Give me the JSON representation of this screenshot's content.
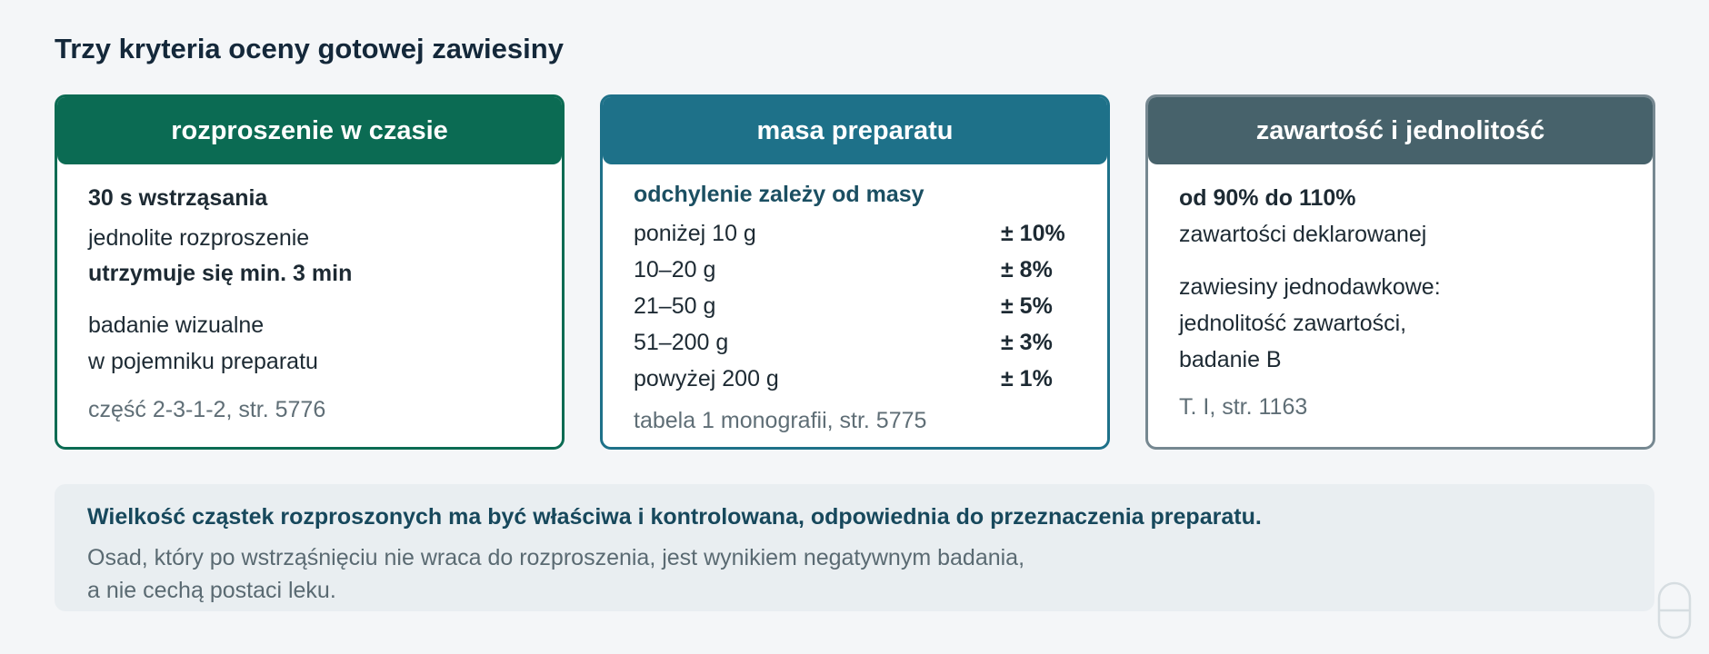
{
  "title": "Trzy kryteria oceny gotowej zawiesiny",
  "cards": [
    {
      "header": "rozproszenie w czasie",
      "lines": [
        "30 s wstrząsania",
        "jednolite rozproszenie",
        "utrzymuje się min. 3 min",
        "badanie wizualne",
        "w pojemniku preparatu",
        "część 2-3-1-2, str. 5776"
      ]
    },
    {
      "header": "masa preparatu",
      "subtitle": "odchylenie zależy od masy",
      "table_rows": [
        {
          "range": "poniżej 10 g",
          "tolerance": "± 10%"
        },
        {
          "range": "10–20 g",
          "tolerance": "± 8%"
        },
        {
          "range": "21–50 g",
          "tolerance": "± 5%"
        },
        {
          "range": "51–200 g",
          "tolerance": "± 3%"
        },
        {
          "range": "powyżej 200 g",
          "tolerance": "± 1%"
        }
      ],
      "source": "tabela 1 monografii, str. 5775"
    },
    {
      "header": "zawartość i jednolitość",
      "lines": [
        "od 90% do 110%",
        "zawartości deklarowanej",
        "zawiesiny jednodawkowe:",
        "jednolitość zawartości,",
        "badanie B",
        "T. I, str. 1163"
      ]
    }
  ],
  "note": {
    "title": "Wielkość cząstek rozproszonych ma być właściwa i kontrolowana, odpowiednia do przeznaczenia preparatu.",
    "text_line1": "Osad, który po wstrząśnięciu nie wraca do rozproszenia, jest wynikiem negatywnym badania,",
    "text_line2": "a nie cechą postaci leku."
  },
  "icons": {
    "corner": "capsule-outline-icon"
  },
  "colors": {
    "card1": "#0b6b53",
    "card2": "#1e7189",
    "card3": "#47626b"
  }
}
